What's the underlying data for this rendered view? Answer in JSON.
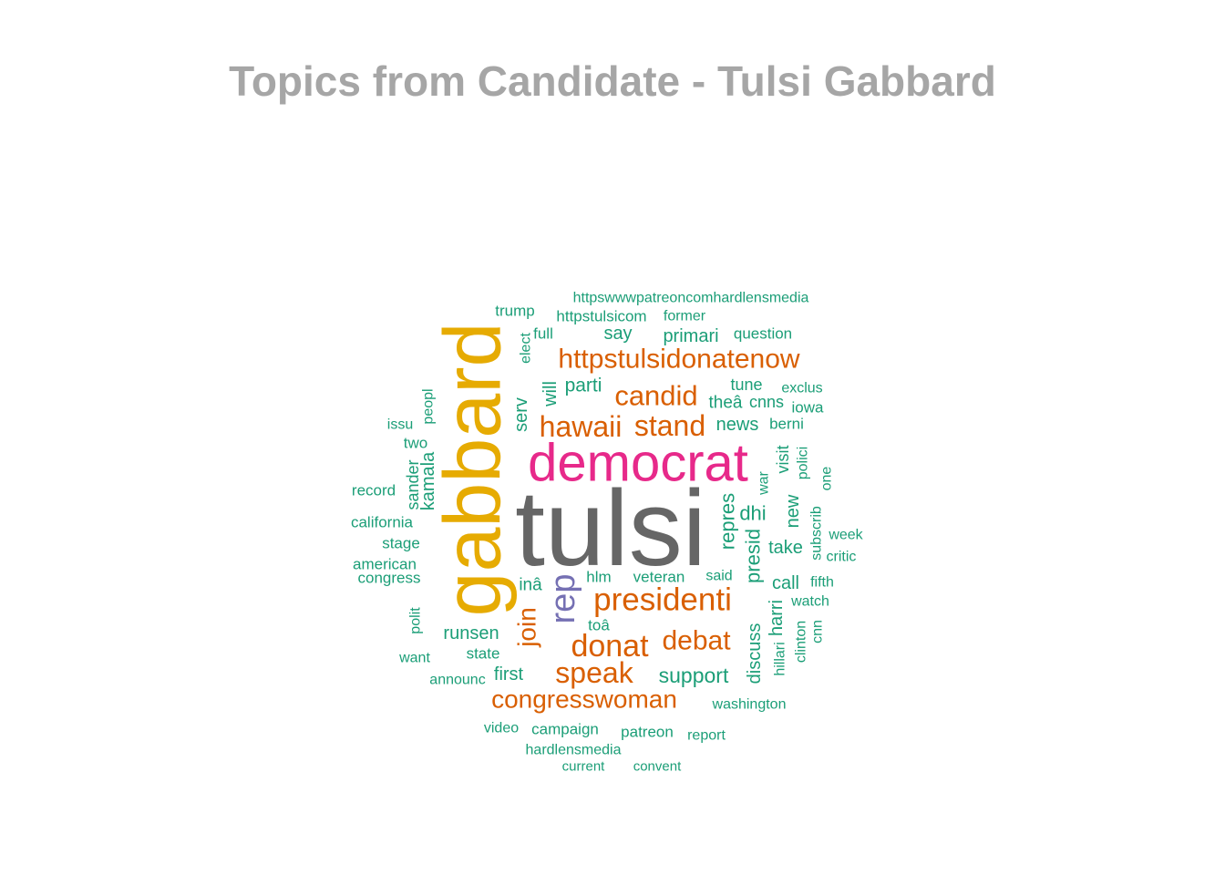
{
  "chart_data": {
    "type": "wordcloud",
    "title": "Topics from Candidate - Tulsi Gabbard",
    "colors": {
      "grey": "#666666",
      "gold": "#e6ab02",
      "pink": "#e7298a",
      "orange": "#d95f02",
      "purple": "#7570b3",
      "teal": "#1b9e77"
    },
    "words": [
      {
        "text": "tulsi",
        "color": "grey",
        "weight": 100
      },
      {
        "text": "gabbard",
        "color": "gold",
        "weight": 78
      },
      {
        "text": "democrat",
        "color": "pink",
        "weight": 52
      },
      {
        "text": "presidenti",
        "color": "orange",
        "weight": 32
      },
      {
        "text": "rep",
        "color": "purple",
        "weight": 34
      },
      {
        "text": "httpstulsidonatenow",
        "color": "orange",
        "weight": 28
      },
      {
        "text": "hawaii",
        "color": "orange",
        "weight": 29
      },
      {
        "text": "stand",
        "color": "orange",
        "weight": 29
      },
      {
        "text": "candid",
        "color": "orange",
        "weight": 28
      },
      {
        "text": "donat",
        "color": "orange",
        "weight": 30
      },
      {
        "text": "speak",
        "color": "orange",
        "weight": 30
      },
      {
        "text": "debat",
        "color": "orange",
        "weight": 28
      },
      {
        "text": "congresswoman",
        "color": "orange",
        "weight": 26
      },
      {
        "text": "join",
        "color": "orange",
        "weight": 26
      },
      {
        "text": "support",
        "color": "teal",
        "weight": 22
      },
      {
        "text": "repres",
        "color": "teal",
        "weight": 21
      },
      {
        "text": "presid",
        "color": "teal",
        "weight": 21
      },
      {
        "text": "dhi",
        "color": "teal",
        "weight": 20
      },
      {
        "text": "primari",
        "color": "teal",
        "weight": 19
      },
      {
        "text": "parti",
        "color": "teal",
        "weight": 19
      },
      {
        "text": "news",
        "color": "teal",
        "weight": 18
      },
      {
        "text": "serv",
        "color": "teal",
        "weight": 18
      },
      {
        "text": "will",
        "color": "teal",
        "weight": 18
      },
      {
        "text": "runsen",
        "color": "teal",
        "weight": 19
      },
      {
        "text": "first",
        "color": "teal",
        "weight": 18
      },
      {
        "text": "take",
        "color": "teal",
        "weight": 18
      },
      {
        "text": "call",
        "color": "teal",
        "weight": 18
      },
      {
        "text": "new",
        "color": "teal",
        "weight": 18
      },
      {
        "text": "discuss",
        "color": "teal",
        "weight": 18
      },
      {
        "text": "harri",
        "color": "teal",
        "weight": 18
      },
      {
        "text": "say",
        "color": "teal",
        "weight": 18
      },
      {
        "text": "tune",
        "color": "teal",
        "weight": 17
      },
      {
        "text": "theâ",
        "color": "teal",
        "weight": 18
      },
      {
        "text": "cnns",
        "color": "teal",
        "weight": 17
      },
      {
        "text": "inâ",
        "color": "teal",
        "weight": 18
      },
      {
        "text": "kamala",
        "color": "teal",
        "weight": 18
      },
      {
        "text": "sander",
        "color": "teal",
        "weight": 17
      },
      {
        "text": "visit",
        "color": "teal",
        "weight": 17
      },
      {
        "text": "veteran",
        "color": "teal",
        "weight": 16
      },
      {
        "text": "hlm",
        "color": "teal",
        "weight": 16
      },
      {
        "text": "toâ",
        "color": "teal",
        "weight": 16
      },
      {
        "text": "state",
        "color": "teal",
        "weight": 16
      },
      {
        "text": "trump",
        "color": "teal",
        "weight": 16
      },
      {
        "text": "httpswwwpatreoncomhardlensmedia",
        "color": "teal",
        "weight": 15
      },
      {
        "text": "httpstulsicom",
        "color": "teal",
        "weight": 16
      },
      {
        "text": "former",
        "color": "teal",
        "weight": 15
      },
      {
        "text": "question",
        "color": "teal",
        "weight": 16
      },
      {
        "text": "full",
        "color": "teal",
        "weight": 15
      },
      {
        "text": "elect",
        "color": "teal",
        "weight": 15
      },
      {
        "text": "exclus",
        "color": "teal",
        "weight": 15
      },
      {
        "text": "iowa",
        "color": "teal",
        "weight": 16
      },
      {
        "text": "berni",
        "color": "teal",
        "weight": 16
      },
      {
        "text": "issu",
        "color": "teal",
        "weight": 15
      },
      {
        "text": "peopl",
        "color": "teal",
        "weight": 15
      },
      {
        "text": "two",
        "color": "teal",
        "weight": 16
      },
      {
        "text": "record",
        "color": "teal",
        "weight": 16
      },
      {
        "text": "california",
        "color": "teal",
        "weight": 16
      },
      {
        "text": "stage",
        "color": "teal",
        "weight": 16
      },
      {
        "text": "american",
        "color": "teal",
        "weight": 16
      },
      {
        "text": "congress",
        "color": "teal",
        "weight": 16
      },
      {
        "text": "polit",
        "color": "teal",
        "weight": 15
      },
      {
        "text": "want",
        "color": "teal",
        "weight": 15
      },
      {
        "text": "announc",
        "color": "teal",
        "weight": 15
      },
      {
        "text": "polici",
        "color": "teal",
        "weight": 15
      },
      {
        "text": "one",
        "color": "teal",
        "weight": 15
      },
      {
        "text": "war",
        "color": "teal",
        "weight": 15
      },
      {
        "text": "subscrib",
        "color": "teal",
        "weight": 15
      },
      {
        "text": "week",
        "color": "teal",
        "weight": 15
      },
      {
        "text": "critic",
        "color": "teal",
        "weight": 15
      },
      {
        "text": "said",
        "color": "teal",
        "weight": 15
      },
      {
        "text": "fifth",
        "color": "teal",
        "weight": 15
      },
      {
        "text": "watch",
        "color": "teal",
        "weight": 15
      },
      {
        "text": "hillari",
        "color": "teal",
        "weight": 15
      },
      {
        "text": "clinton",
        "color": "teal",
        "weight": 15
      },
      {
        "text": "cnn",
        "color": "teal",
        "weight": 15
      },
      {
        "text": "washington",
        "color": "teal",
        "weight": 15
      },
      {
        "text": "video",
        "color": "teal",
        "weight": 15
      },
      {
        "text": "campaign",
        "color": "teal",
        "weight": 16
      },
      {
        "text": "patreon",
        "color": "teal",
        "weight": 16
      },
      {
        "text": "report",
        "color": "teal",
        "weight": 15
      },
      {
        "text": "hardlensmedia",
        "color": "teal",
        "weight": 15
      },
      {
        "text": "current",
        "color": "teal",
        "weight": 14
      },
      {
        "text": "convent",
        "color": "teal",
        "weight": 14
      }
    ]
  }
}
